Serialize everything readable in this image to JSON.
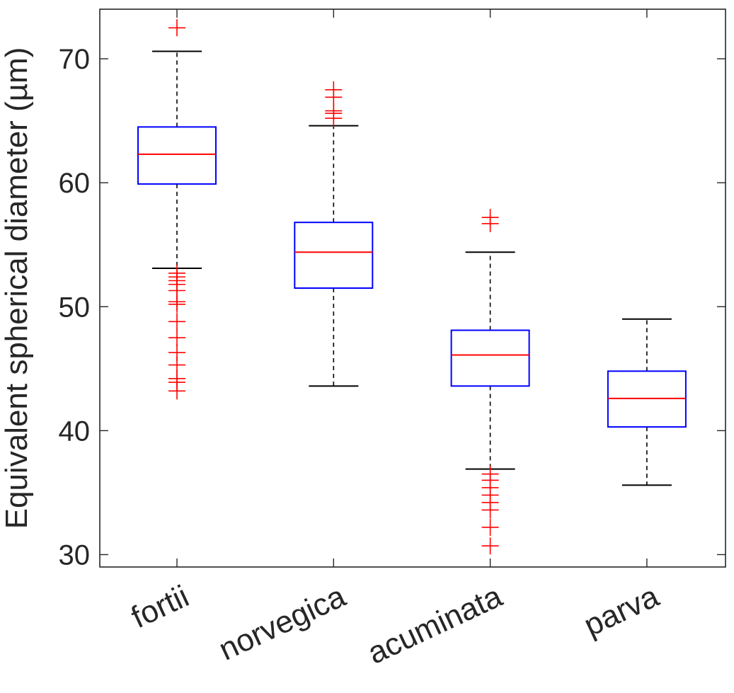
{
  "chart_data": {
    "type": "box",
    "ylabel": "Equivalent spherical diameter (µm)",
    "xlabel": "",
    "ylim": [
      29,
      74
    ],
    "yticks": [
      30,
      40,
      50,
      60,
      70
    ],
    "grid": false,
    "categories": [
      "fortii",
      "norvegica",
      "acuminata",
      "parva"
    ],
    "boxes": [
      {
        "category": "fortii",
        "whisker_low": 53.1,
        "q1": 59.9,
        "median": 62.3,
        "q3": 64.5,
        "whisker_high": 70.6,
        "outliers": [
          72.5,
          52.7,
          52.4,
          52.1,
          51.8,
          51.3,
          50.4,
          50.2,
          48.8,
          47.5,
          46.3,
          45.3,
          44.2,
          43.9,
          43.2
        ]
      },
      {
        "category": "norvegica",
        "whisker_low": 43.6,
        "q1": 51.5,
        "median": 54.4,
        "q3": 56.8,
        "whisker_high": 64.6,
        "outliers": [
          67.5,
          66.9,
          65.8,
          65.6,
          65.2
        ]
      },
      {
        "category": "acuminata",
        "whisker_low": 36.9,
        "q1": 43.6,
        "median": 46.1,
        "q3": 48.1,
        "whisker_high": 54.4,
        "outliers": [
          57.2,
          56.7,
          36.5,
          36.0,
          35.4,
          34.8,
          34.2,
          33.6,
          32.2,
          30.7
        ]
      },
      {
        "category": "parva",
        "whisker_low": 35.6,
        "q1": 40.3,
        "median": 42.6,
        "q3": 44.8,
        "whisker_high": 49.0,
        "outliers": []
      }
    ],
    "colors": {
      "box": "#0000ff",
      "median": "#ff0000",
      "outlier": "#ff0000",
      "whisker": "#000000",
      "axis": "#262626"
    }
  }
}
